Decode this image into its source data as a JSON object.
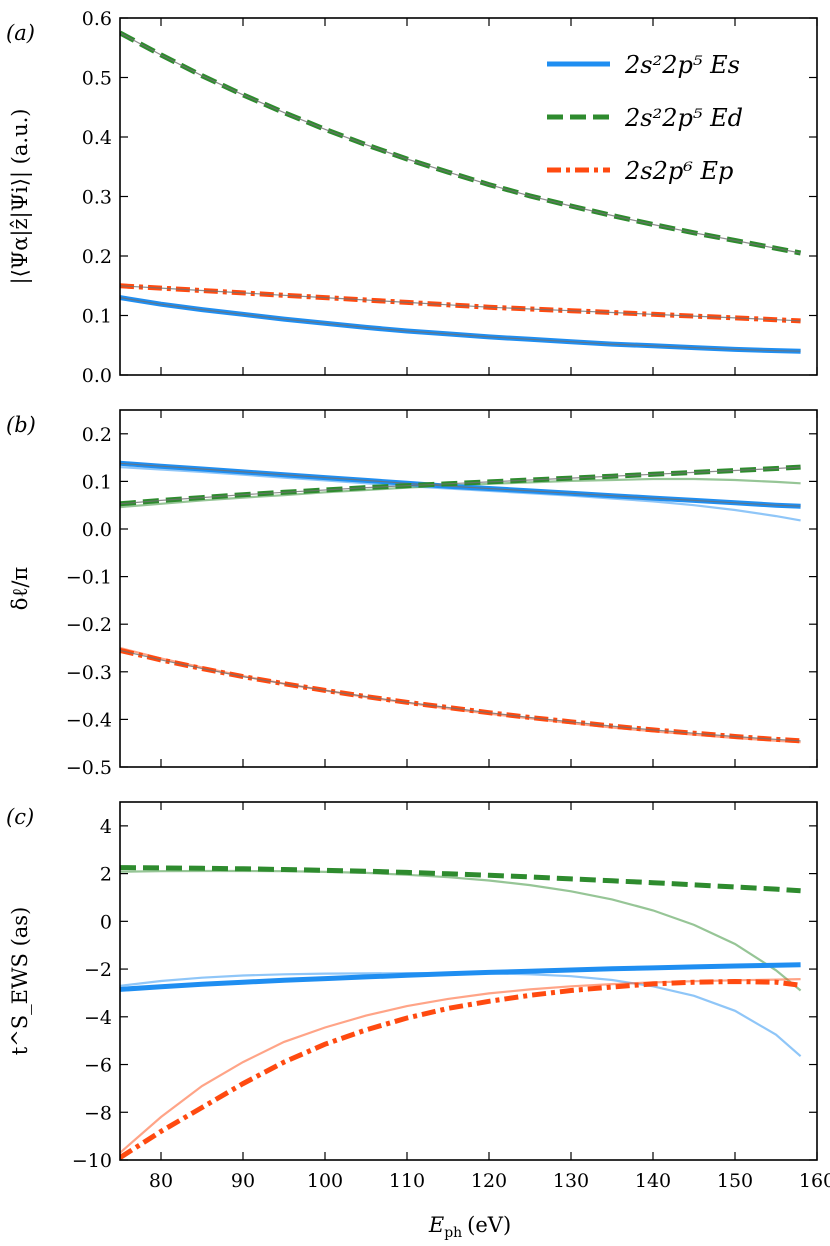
{
  "colors": {
    "Es": "#1f8ef1",
    "Ed": "#2e8b2e",
    "Ep": "#ff4a10",
    "ref": "#707070"
  },
  "legend": [
    {
      "key": "Es",
      "label": "2s²2p⁵ Es"
    },
    {
      "key": "Ed",
      "label": "2s²2p⁵ Ed"
    },
    {
      "key": "Ep",
      "label": "2s2p⁶ Ep"
    }
  ],
  "xaxis": {
    "label": "E_ph (eV)",
    "label_main": "E",
    "label_sub": "ph",
    "label_unit": "(eV)",
    "lim": [
      75,
      160
    ],
    "ticks": [
      80,
      90,
      100,
      110,
      120,
      130,
      140,
      150,
      160
    ]
  },
  "chart_data": [
    {
      "type": "line",
      "panel": "(a)",
      "ylabel": "|⟨Ψα|ẑ|Ψi⟩| (a.u.)",
      "ylim": [
        0.0,
        0.6
      ],
      "yticks": [
        0.0,
        0.1,
        0.2,
        0.3,
        0.4,
        0.5,
        0.6
      ],
      "yticklabels": [
        "0.0",
        "0.1",
        "0.2",
        "0.3",
        "0.4",
        "0.5",
        "0.6"
      ],
      "x": [
        75,
        80,
        85,
        90,
        95,
        100,
        105,
        110,
        115,
        120,
        125,
        130,
        135,
        140,
        145,
        150,
        155,
        158
      ],
      "series": [
        {
          "name": "2s²2p⁵ Es",
          "key": "Es",
          "style": "solid",
          "values": [
            0.13,
            0.119,
            0.11,
            0.102,
            0.094,
            0.087,
            0.08,
            0.074,
            0.069,
            0.064,
            0.06,
            0.056,
            0.052,
            0.049,
            0.046,
            0.043,
            0.041,
            0.04
          ]
        },
        {
          "name": "2s²2p⁵ Ed",
          "key": "Ed",
          "style": "dashed",
          "values": [
            0.575,
            0.538,
            0.503,
            0.471,
            0.441,
            0.413,
            0.387,
            0.363,
            0.341,
            0.32,
            0.301,
            0.284,
            0.268,
            0.253,
            0.239,
            0.226,
            0.213,
            0.205
          ]
        },
        {
          "name": "2s2p⁶ Ep",
          "key": "Ep",
          "style": "dashdot",
          "values": [
            0.15,
            0.146,
            0.142,
            0.138,
            0.134,
            0.13,
            0.126,
            0.122,
            0.118,
            0.114,
            0.111,
            0.108,
            0.105,
            0.102,
            0.099,
            0.096,
            0.093,
            0.091
          ]
        }
      ],
      "thin_series": []
    },
    {
      "type": "line",
      "panel": "(b)",
      "ylabel": "δℓ/π",
      "ylim": [
        -0.5,
        0.25
      ],
      "yticks": [
        0.2,
        0.1,
        0.0,
        -0.1,
        -0.2,
        -0.3,
        -0.4,
        -0.5
      ],
      "yticklabels": [
        "0.2",
        "0.1",
        "0.0",
        "−0.1",
        "−0.2",
        "−0.3",
        "−0.4",
        "−0.5"
      ],
      "x": [
        75,
        80,
        85,
        90,
        95,
        100,
        105,
        110,
        115,
        120,
        125,
        130,
        135,
        140,
        145,
        150,
        155,
        158
      ],
      "series": [
        {
          "name": "2s²2p⁵ Es",
          "key": "Es",
          "style": "solid",
          "values": [
            0.138,
            0.132,
            0.126,
            0.12,
            0.114,
            0.108,
            0.102,
            0.096,
            0.09,
            0.085,
            0.08,
            0.075,
            0.07,
            0.065,
            0.06,
            0.055,
            0.05,
            0.048
          ]
        },
        {
          "name": "2s²2p⁵ Ed",
          "key": "Ed",
          "style": "dashed",
          "values": [
            0.053,
            0.06,
            0.066,
            0.072,
            0.077,
            0.082,
            0.087,
            0.091,
            0.095,
            0.099,
            0.103,
            0.107,
            0.111,
            0.115,
            0.119,
            0.123,
            0.127,
            0.13
          ]
        },
        {
          "name": "2s2p⁶ Ep",
          "key": "Ep",
          "style": "dashdot",
          "values": [
            -0.255,
            -0.275,
            -0.293,
            -0.31,
            -0.325,
            -0.339,
            -0.352,
            -0.364,
            -0.375,
            -0.386,
            -0.396,
            -0.405,
            -0.414,
            -0.422,
            -0.429,
            -0.436,
            -0.442,
            -0.445
          ]
        }
      ],
      "thin_series": [
        {
          "key": "Es",
          "values": [
            0.13,
            0.125,
            0.12,
            0.114,
            0.108,
            0.102,
            0.096,
            0.09,
            0.085,
            0.08,
            0.075,
            0.07,
            0.064,
            0.058,
            0.05,
            0.04,
            0.027,
            0.018
          ]
        },
        {
          "key": "Ed",
          "values": [
            0.046,
            0.053,
            0.06,
            0.066,
            0.071,
            0.077,
            0.082,
            0.087,
            0.091,
            0.095,
            0.098,
            0.101,
            0.103,
            0.105,
            0.105,
            0.103,
            0.099,
            0.096
          ]
        },
        {
          "key": "Ep",
          "values": [
            -0.25,
            -0.272,
            -0.291,
            -0.309,
            -0.325,
            -0.339,
            -0.353,
            -0.365,
            -0.377,
            -0.388,
            -0.398,
            -0.408,
            -0.417,
            -0.425,
            -0.432,
            -0.439,
            -0.445,
            -0.448
          ]
        }
      ]
    },
    {
      "type": "line",
      "panel": "(c)",
      "ylabel": "t^S_EWS (as)",
      "ylim": [
        -10,
        5
      ],
      "yticks": [
        4,
        2,
        0,
        -2,
        -4,
        -6,
        -8,
        -10
      ],
      "yticklabels": [
        "4",
        "2",
        "0",
        "−2",
        "−4",
        "−6",
        "−8",
        "−10"
      ],
      "x": [
        75,
        80,
        85,
        90,
        95,
        100,
        105,
        110,
        115,
        120,
        125,
        130,
        135,
        140,
        145,
        150,
        155,
        158
      ],
      "series": [
        {
          "name": "2s²2p⁵ Es",
          "key": "Es",
          "style": "solid",
          "values": [
            -2.85,
            -2.74,
            -2.64,
            -2.55,
            -2.47,
            -2.4,
            -2.33,
            -2.26,
            -2.2,
            -2.14,
            -2.09,
            -2.04,
            -1.99,
            -1.95,
            -1.91,
            -1.87,
            -1.84,
            -1.82
          ]
        },
        {
          "name": "2s²2p⁵ Ed",
          "key": "Ed",
          "style": "dashed",
          "values": [
            2.25,
            2.24,
            2.22,
            2.2,
            2.17,
            2.14,
            2.1,
            2.05,
            1.99,
            1.93,
            1.86,
            1.78,
            1.7,
            1.62,
            1.53,
            1.44,
            1.35,
            1.28
          ]
        },
        {
          "name": "2s2p⁶ Ep",
          "key": "Ep",
          "style": "dashdot",
          "values": [
            -9.9,
            -8.8,
            -7.8,
            -6.8,
            -5.9,
            -5.15,
            -4.55,
            -4.05,
            -3.65,
            -3.35,
            -3.1,
            -2.9,
            -2.75,
            -2.62,
            -2.55,
            -2.52,
            -2.55,
            -2.68
          ]
        }
      ],
      "thin_series": [
        {
          "key": "Es",
          "values": [
            -2.7,
            -2.5,
            -2.36,
            -2.27,
            -2.22,
            -2.19,
            -2.18,
            -2.17,
            -2.17,
            -2.18,
            -2.22,
            -2.3,
            -2.46,
            -2.72,
            -3.12,
            -3.75,
            -4.75,
            -5.65
          ]
        },
        {
          "key": "Ed",
          "values": [
            2.08,
            2.1,
            2.11,
            2.11,
            2.1,
            2.07,
            2.03,
            1.95,
            1.85,
            1.71,
            1.52,
            1.26,
            0.92,
            0.46,
            -0.15,
            -0.95,
            -2.05,
            -2.9
          ]
        },
        {
          "key": "Ep",
          "values": [
            -9.7,
            -8.2,
            -6.9,
            -5.9,
            -5.05,
            -4.45,
            -3.95,
            -3.55,
            -3.25,
            -3.02,
            -2.85,
            -2.72,
            -2.63,
            -2.56,
            -2.51,
            -2.47,
            -2.44,
            -2.42
          ]
        }
      ]
    }
  ]
}
